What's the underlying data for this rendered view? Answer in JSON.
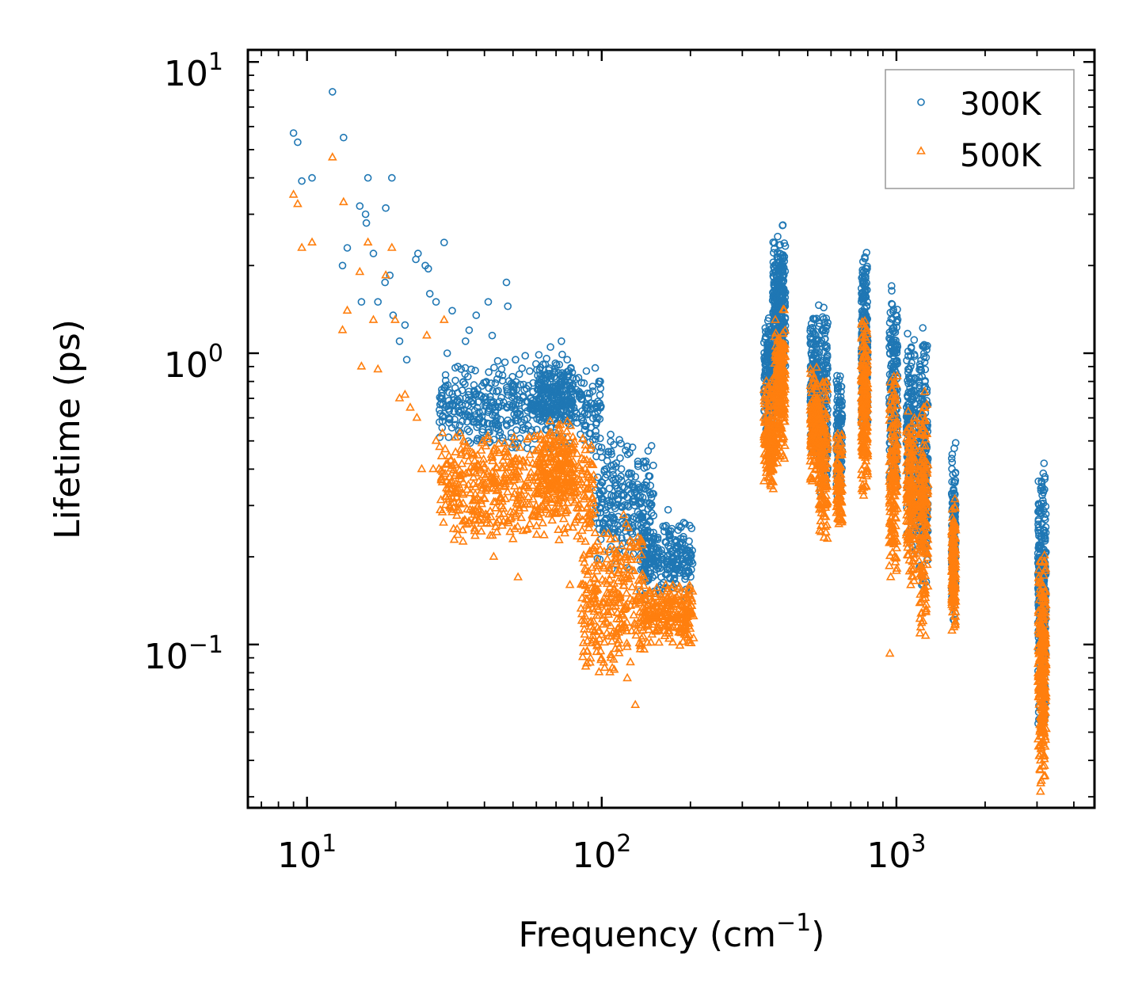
{
  "chart_data": {
    "type": "scatter",
    "title": "",
    "xlabel": "Frequency (cm",
    "xlabel_sup": "−1",
    "xlabel_suffix": ")",
    "ylabel": "Lifetime (ps)",
    "xscale": "log",
    "yscale": "log",
    "xlim": [
      6.3,
      4700
    ],
    "ylim": [
      0.0275,
      11
    ],
    "x_ticks": [
      {
        "base": "10",
        "exp": "1",
        "value": 10
      },
      {
        "base": "10",
        "exp": "2",
        "value": 100
      },
      {
        "base": "10",
        "exp": "3",
        "value": 1000
      }
    ],
    "y_ticks": [
      {
        "base": "10",
        "exp": "1",
        "value": 10
      },
      {
        "base": "10",
        "exp": "0",
        "value": 1
      },
      {
        "base": "10",
        "exp": "−1",
        "value": 0.1
      }
    ],
    "legend_position": "top-right",
    "series": [
      {
        "name": "300K",
        "color": "#1f77b4",
        "marker": "circle",
        "isolated_points": [
          [
            9.0,
            5.7
          ],
          [
            9.3,
            5.3
          ],
          [
            9.6,
            3.9
          ],
          [
            10.4,
            4.0
          ],
          [
            12.2,
            7.9
          ],
          [
            13.3,
            5.5
          ],
          [
            13.2,
            2.0
          ],
          [
            13.7,
            2.3
          ],
          [
            15.1,
            3.2
          ],
          [
            15.3,
            1.5
          ],
          [
            15.8,
            3.0
          ],
          [
            16.1,
            4.0
          ],
          [
            15.9,
            2.8
          ],
          [
            16.8,
            2.2
          ],
          [
            17.4,
            1.5
          ],
          [
            18.4,
            1.75
          ],
          [
            18.5,
            3.15
          ],
          [
            19.4,
            4.0
          ],
          [
            19.1,
            1.85
          ],
          [
            19.6,
            1.35
          ],
          [
            20.6,
            1.1
          ],
          [
            21.5,
            1.25
          ],
          [
            21.8,
            0.95
          ],
          [
            23.4,
            2.1
          ],
          [
            23.8,
            2.2
          ],
          [
            25.2,
            2.0
          ],
          [
            25.8,
            1.95
          ],
          [
            26.1,
            1.6
          ],
          [
            27.4,
            1.5
          ],
          [
            29.2,
            2.4
          ],
          [
            29.9,
            1.0
          ],
          [
            31.1,
            1.4
          ],
          [
            32.5,
            0.9
          ],
          [
            34.5,
            1.1
          ],
          [
            35.5,
            1.2
          ],
          [
            37.5,
            1.35
          ],
          [
            41.2,
            1.5
          ],
          [
            42.5,
            1.15
          ],
          [
            47.5,
            1.75
          ],
          [
            48.0,
            1.45
          ],
          [
            51.0,
            0.95
          ],
          [
            55.0,
            0.98
          ],
          [
            67.0,
            1.05
          ],
          [
            73.0,
            1.1
          ],
          [
            82.0,
            0.75
          ],
          [
            97.0,
            0.6
          ],
          [
            108.0,
            0.45
          ],
          [
            122.0,
            0.32
          ],
          [
            168.0,
            0.29
          ]
        ],
        "clusters": [
          {
            "x_min": 28,
            "x_max": 100,
            "y_min": 0.45,
            "y_max": 0.95,
            "count": 500
          },
          {
            "x_min": 60,
            "x_max": 80,
            "y_min": 0.55,
            "y_max": 1.0,
            "count": 160
          },
          {
            "x_min": 95,
            "x_max": 150,
            "y_min": 0.18,
            "y_max": 0.55,
            "count": 260
          },
          {
            "x_min": 135,
            "x_max": 205,
            "y_min": 0.14,
            "y_max": 0.28,
            "count": 260
          },
          {
            "x_min": 355,
            "x_max": 380,
            "y_min": 0.5,
            "y_max": 1.4,
            "count": 150
          },
          {
            "x_min": 380,
            "x_max": 420,
            "y_min": 0.7,
            "y_max": 2.8,
            "count": 300
          },
          {
            "x_min": 510,
            "x_max": 545,
            "y_min": 0.45,
            "y_max": 1.4,
            "count": 180
          },
          {
            "x_min": 545,
            "x_max": 585,
            "y_min": 0.3,
            "y_max": 1.6,
            "count": 180
          },
          {
            "x_min": 625,
            "x_max": 655,
            "y_min": 0.3,
            "y_max": 0.9,
            "count": 120
          },
          {
            "x_min": 760,
            "x_max": 800,
            "y_min": 0.5,
            "y_max": 2.4,
            "count": 260
          },
          {
            "x_min": 945,
            "x_max": 1010,
            "y_min": 0.3,
            "y_max": 1.8,
            "count": 200
          },
          {
            "x_min": 1080,
            "x_max": 1160,
            "y_min": 0.2,
            "y_max": 1.2,
            "count": 200
          },
          {
            "x_min": 1190,
            "x_max": 1280,
            "y_min": 0.13,
            "y_max": 1.4,
            "count": 220
          },
          {
            "x_min": 1540,
            "x_max": 1590,
            "y_min": 0.12,
            "y_max": 0.5,
            "count": 140
          },
          {
            "x_min": 3020,
            "x_max": 3220,
            "y_min": 0.05,
            "y_max": 0.43,
            "count": 300
          }
        ]
      },
      {
        "name": "500K",
        "color": "#ff7f0e",
        "marker": "triangle",
        "isolated_points": [
          [
            9.0,
            3.5
          ],
          [
            9.3,
            3.25
          ],
          [
            9.6,
            2.3
          ],
          [
            10.4,
            2.4
          ],
          [
            12.2,
            4.7
          ],
          [
            13.3,
            3.3
          ],
          [
            13.2,
            1.2
          ],
          [
            13.7,
            1.4
          ],
          [
            15.1,
            1.9
          ],
          [
            15.3,
            0.9
          ],
          [
            16.1,
            2.4
          ],
          [
            16.8,
            1.3
          ],
          [
            17.4,
            0.88
          ],
          [
            18.5,
            1.85
          ],
          [
            19.4,
            2.3
          ],
          [
            19.9,
            1.3
          ],
          [
            20.6,
            0.7
          ],
          [
            21.5,
            0.72
          ],
          [
            22.4,
            0.65
          ],
          [
            23.6,
            0.6
          ],
          [
            24.5,
            0.4
          ],
          [
            25.5,
            1.15
          ],
          [
            26.8,
            0.4
          ],
          [
            27.4,
            0.5
          ],
          [
            29.2,
            1.3
          ],
          [
            34.0,
            0.5
          ],
          [
            43.0,
            0.2
          ],
          [
            50.0,
            0.23
          ],
          [
            52.0,
            0.17
          ],
          [
            78.0,
            0.16
          ],
          [
            92.0,
            0.12
          ],
          [
            122.0,
            0.098
          ],
          [
            130.0,
            0.062
          ],
          [
            950.0,
            0.093
          ]
        ],
        "clusters": [
          {
            "x_min": 28,
            "x_max": 95,
            "y_min": 0.22,
            "y_max": 0.55,
            "count": 550
          },
          {
            "x_min": 60,
            "x_max": 80,
            "y_min": 0.3,
            "y_max": 0.6,
            "count": 160
          },
          {
            "x_min": 85,
            "x_max": 140,
            "y_min": 0.075,
            "y_max": 0.3,
            "count": 300
          },
          {
            "x_min": 140,
            "x_max": 205,
            "y_min": 0.095,
            "y_max": 0.165,
            "count": 220
          },
          {
            "x_min": 355,
            "x_max": 385,
            "y_min": 0.31,
            "y_max": 0.85,
            "count": 150
          },
          {
            "x_min": 385,
            "x_max": 420,
            "y_min": 0.4,
            "y_max": 1.5,
            "count": 260
          },
          {
            "x_min": 510,
            "x_max": 545,
            "y_min": 0.35,
            "y_max": 0.95,
            "count": 160
          },
          {
            "x_min": 545,
            "x_max": 585,
            "y_min": 0.21,
            "y_max": 0.9,
            "count": 160
          },
          {
            "x_min": 625,
            "x_max": 655,
            "y_min": 0.22,
            "y_max": 0.55,
            "count": 110
          },
          {
            "x_min": 760,
            "x_max": 800,
            "y_min": 0.3,
            "y_max": 1.4,
            "count": 240
          },
          {
            "x_min": 945,
            "x_max": 1010,
            "y_min": 0.15,
            "y_max": 0.95,
            "count": 180
          },
          {
            "x_min": 1080,
            "x_max": 1160,
            "y_min": 0.15,
            "y_max": 0.7,
            "count": 180
          },
          {
            "x_min": 1190,
            "x_max": 1280,
            "y_min": 0.1,
            "y_max": 0.8,
            "count": 200
          },
          {
            "x_min": 1540,
            "x_max": 1590,
            "y_min": 0.105,
            "y_max": 0.33,
            "count": 140
          },
          {
            "x_min": 3020,
            "x_max": 3220,
            "y_min": 0.0305,
            "y_max": 0.22,
            "count": 320
          }
        ]
      }
    ]
  }
}
